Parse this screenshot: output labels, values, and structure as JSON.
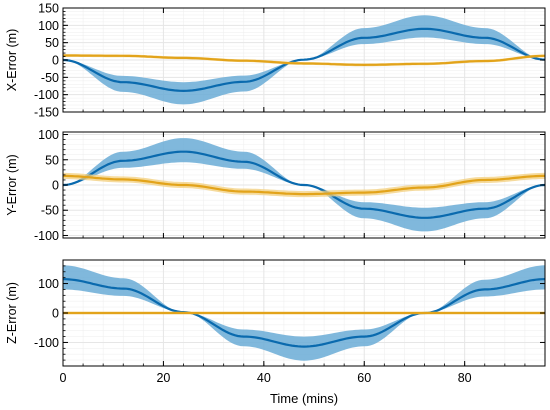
{
  "figure": {
    "xlabel": "Time (mins)"
  },
  "colors": {
    "blue_line": "#0a6aae",
    "blue_band": "#6aacd6",
    "gold_line": "#e2a31a",
    "gold_band": "#f3cf7c",
    "grid": "#e6e6e6",
    "axes": "#000000"
  },
  "chart_data": [
    {
      "type": "area",
      "title": "",
      "ylabel": "X-Error (m)",
      "xlabel": "",
      "xlim": [
        0,
        96
      ],
      "ylim": [
        -150,
        150
      ],
      "yticks": [
        "150",
        "100",
        "50",
        "0",
        "-50",
        "-100",
        "-150"
      ],
      "xticks": [
        "0",
        "20",
        "40",
        "60",
        "80"
      ],
      "grid": true,
      "series": [
        {
          "color": "blue",
          "x": [
            0,
            12,
            24,
            36,
            48,
            60,
            72,
            84,
            96
          ],
          "mean": [
            0,
            -64,
            -89,
            -63,
            1,
            64,
            90,
            64,
            1
          ],
          "upper": [
            0,
            -46,
            -64,
            -45,
            1,
            92,
            129,
            92,
            1
          ],
          "lower": [
            0,
            -92,
            -128,
            -91,
            1,
            46,
            65,
            46,
            1
          ]
        },
        {
          "color": "gold",
          "x": [
            0,
            12,
            24,
            36,
            48,
            60,
            72,
            84,
            96
          ],
          "mean": [
            13,
            12,
            6,
            -2,
            -10,
            -14,
            -11,
            -3,
            12
          ],
          "upper": [
            17,
            16,
            10,
            2,
            -6,
            -10,
            -7,
            1,
            16
          ],
          "lower": [
            9,
            8,
            2,
            -6,
            -14,
            -18,
            -15,
            -7,
            8
          ]
        }
      ]
    },
    {
      "type": "area",
      "title": "",
      "ylabel": "Y-Error (m)",
      "xlabel": "",
      "xlim": [
        0,
        96
      ],
      "ylim": [
        -105,
        105
      ],
      "yticks": [
        "100",
        "50",
        "0",
        "-50",
        "-100"
      ],
      "xticks": [
        "0",
        "20",
        "40",
        "60",
        "80"
      ],
      "grid": true,
      "series": [
        {
          "color": "blue",
          "x": [
            0,
            12,
            24,
            36,
            48,
            60,
            72,
            84,
            96
          ],
          "mean": [
            0,
            48,
            66,
            46,
            0,
            -47,
            -65,
            -47,
            0
          ],
          "upper": [
            0,
            66,
            93,
            66,
            0,
            -34,
            -45,
            -34,
            0
          ],
          "lower": [
            0,
            34,
            45,
            32,
            0,
            -66,
            -92,
            -66,
            0
          ]
        },
        {
          "color": "gold",
          "x": [
            0,
            12,
            24,
            36,
            48,
            60,
            72,
            84,
            96
          ],
          "mean": [
            18,
            11,
            0,
            -13,
            -18,
            -15,
            -5,
            10,
            18
          ],
          "upper": [
            24,
            17,
            6,
            -7,
            -12,
            -9,
            1,
            16,
            24
          ],
          "lower": [
            12,
            5,
            -6,
            -19,
            -24,
            -21,
            -11,
            4,
            12
          ]
        }
      ]
    },
    {
      "type": "area",
      "title": "",
      "ylabel": "Z-Error (m)",
      "xlabel": "Time (mins)",
      "xlim": [
        0,
        96
      ],
      "ylim": [
        -180,
        180
      ],
      "yticks": [
        "100",
        "0",
        "-100"
      ],
      "xticks": [
        "0",
        "20",
        "40",
        "60",
        "80"
      ],
      "grid": true,
      "series": [
        {
          "color": "blue",
          "x": [
            0,
            12,
            24,
            36,
            48,
            60,
            72,
            84,
            96
          ],
          "mean": [
            115,
            83,
            3,
            -80,
            -114,
            -80,
            0,
            80,
            115
          ],
          "upper": [
            162,
            118,
            3,
            -56,
            -80,
            -56,
            0,
            113,
            162
          ],
          "lower": [
            80,
            58,
            3,
            -113,
            -162,
            -113,
            0,
            56,
            80
          ]
        },
        {
          "color": "gold",
          "x": [
            0,
            12,
            24,
            36,
            48,
            60,
            72,
            84,
            96
          ],
          "mean": [
            0,
            0,
            0,
            0,
            0,
            0,
            0,
            0,
            0
          ],
          "upper": [
            4,
            4,
            4,
            4,
            4,
            4,
            4,
            4,
            4
          ],
          "lower": [
            -4,
            -4,
            -4,
            -4,
            -4,
            -4,
            -4,
            -4,
            -4
          ]
        }
      ]
    }
  ]
}
